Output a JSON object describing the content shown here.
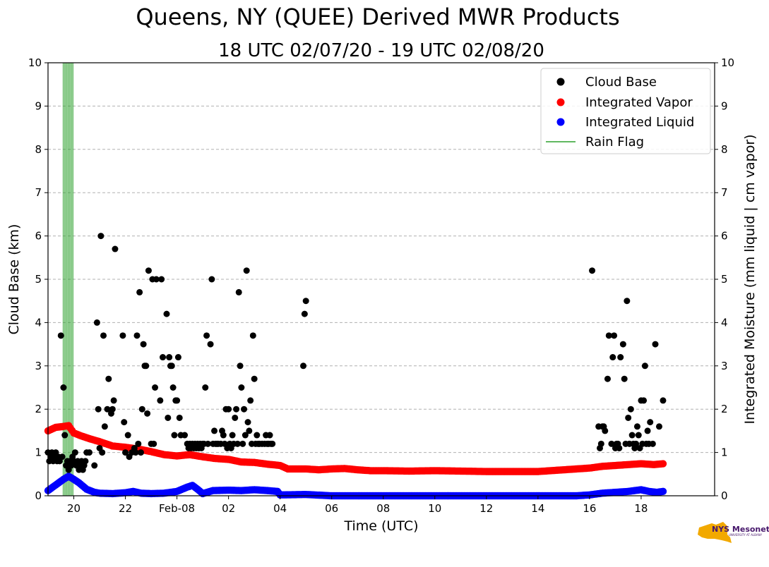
{
  "chart_data": {
    "type": "scatter",
    "title": "Queens, NY (QUEE) Derived MWR Products",
    "subtitle": "18 UTC 02/07/20 - 19 UTC 02/08/20",
    "xlabel": "Time (UTC)",
    "ylabel_left": "Cloud Base (km)",
    "ylabel_right": "Integrated Moisture (mm liquid | cm vapor)",
    "xlim_hours": [
      19.0,
      44.85
    ],
    "ylim": [
      0,
      10
    ],
    "y_ticks": [
      "0",
      "1",
      "2",
      "3",
      "4",
      "5",
      "6",
      "7",
      "8",
      "9",
      "10"
    ],
    "x_ticks": [
      {
        "hour": 20,
        "label": "20"
      },
      {
        "hour": 22,
        "label": "22"
      },
      {
        "hour": 24,
        "label": "Feb-08"
      },
      {
        "hour": 26,
        "label": "02"
      },
      {
        "hour": 28,
        "label": "04"
      },
      {
        "hour": 30,
        "label": "06"
      },
      {
        "hour": 32,
        "label": "08"
      },
      {
        "hour": 34,
        "label": "10"
      },
      {
        "hour": 36,
        "label": "12"
      },
      {
        "hour": 38,
        "label": "14"
      },
      {
        "hour": 40,
        "label": "16"
      },
      {
        "hour": 42,
        "label": "18"
      }
    ],
    "grid": "horizontal-dashed",
    "legend_position": "top-right",
    "series": [
      {
        "name": "Cloud Base",
        "color": "#000000",
        "points": [
          [
            19.0,
            1.0
          ],
          [
            19.05,
            0.8
          ],
          [
            19.1,
            0.9
          ],
          [
            19.15,
            1.0
          ],
          [
            19.2,
            0.8
          ],
          [
            19.25,
            0.9
          ],
          [
            19.3,
            1.0
          ],
          [
            19.35,
            0.8
          ],
          [
            19.4,
            0.9
          ],
          [
            19.45,
            0.8
          ],
          [
            19.5,
            3.7
          ],
          [
            19.55,
            0.9
          ],
          [
            19.6,
            2.5
          ],
          [
            19.65,
            1.4
          ],
          [
            19.7,
            0.7
          ],
          [
            19.75,
            0.8
          ],
          [
            19.8,
            0.6
          ],
          [
            19.85,
            0.8
          ],
          [
            19.9,
            0.7
          ],
          [
            19.95,
            0.9
          ],
          [
            20.0,
            0.8
          ],
          [
            20.05,
            1.0
          ],
          [
            20.1,
            0.7
          ],
          [
            20.15,
            0.8
          ],
          [
            20.2,
            0.6
          ],
          [
            20.25,
            0.7
          ],
          [
            20.3,
            0.8
          ],
          [
            20.35,
            0.6
          ],
          [
            20.4,
            0.7
          ],
          [
            20.45,
            0.8
          ],
          [
            20.5,
            1.0
          ],
          [
            20.6,
            1.0
          ],
          [
            20.8,
            0.7
          ],
          [
            20.9,
            4.0
          ],
          [
            20.95,
            2.0
          ],
          [
            21.0,
            1.1
          ],
          [
            21.05,
            6.0
          ],
          [
            21.1,
            1.0
          ],
          [
            21.15,
            3.7
          ],
          [
            21.2,
            1.6
          ],
          [
            21.3,
            2.0
          ],
          [
            21.35,
            2.7
          ],
          [
            21.45,
            1.9
          ],
          [
            21.5,
            2.0
          ],
          [
            21.55,
            2.2
          ],
          [
            21.6,
            5.7
          ],
          [
            21.9,
            3.7
          ],
          [
            21.95,
            1.7
          ],
          [
            22.0,
            1.0
          ],
          [
            22.1,
            1.4
          ],
          [
            22.15,
            0.9
          ],
          [
            22.25,
            1.0
          ],
          [
            22.35,
            1.1
          ],
          [
            22.4,
            1.0
          ],
          [
            22.45,
            3.7
          ],
          [
            22.5,
            1.2
          ],
          [
            22.55,
            4.7
          ],
          [
            22.6,
            1.0
          ],
          [
            22.65,
            2.0
          ],
          [
            22.7,
            3.5
          ],
          [
            22.75,
            3.0
          ],
          [
            22.8,
            3.0
          ],
          [
            22.85,
            1.9
          ],
          [
            22.9,
            5.2
          ],
          [
            23.0,
            1.2
          ],
          [
            23.05,
            5.0
          ],
          [
            23.1,
            1.2
          ],
          [
            23.15,
            2.5
          ],
          [
            23.2,
            5.0
          ],
          [
            23.35,
            2.2
          ],
          [
            23.4,
            5.0
          ],
          [
            23.45,
            3.2
          ],
          [
            23.6,
            4.2
          ],
          [
            23.65,
            1.8
          ],
          [
            23.7,
            3.2
          ],
          [
            23.75,
            3.0
          ],
          [
            23.8,
            3.0
          ],
          [
            23.85,
            2.5
          ],
          [
            23.9,
            1.4
          ],
          [
            23.95,
            2.2
          ],
          [
            24.0,
            2.2
          ],
          [
            24.05,
            3.2
          ],
          [
            24.1,
            1.8
          ],
          [
            24.15,
            1.4
          ],
          [
            24.3,
            1.4
          ],
          [
            24.4,
            1.2
          ],
          [
            24.45,
            1.1
          ],
          [
            24.5,
            1.2
          ],
          [
            24.55,
            1.1
          ],
          [
            24.6,
            1.2
          ],
          [
            24.65,
            1.1
          ],
          [
            24.7,
            1.2
          ],
          [
            24.75,
            1.1
          ],
          [
            24.8,
            1.2
          ],
          [
            24.85,
            1.1
          ],
          [
            24.9,
            1.2
          ],
          [
            24.95,
            1.1
          ],
          [
            25.0,
            1.2
          ],
          [
            25.05,
            1.2
          ],
          [
            25.1,
            2.5
          ],
          [
            25.15,
            3.7
          ],
          [
            25.2,
            1.2
          ],
          [
            25.3,
            3.5
          ],
          [
            25.35,
            5.0
          ],
          [
            25.4,
            1.2
          ],
          [
            25.45,
            1.5
          ],
          [
            25.5,
            1.2
          ],
          [
            25.55,
            1.2
          ],
          [
            25.6,
            1.2
          ],
          [
            25.7,
            1.2
          ],
          [
            25.75,
            1.5
          ],
          [
            25.8,
            1.4
          ],
          [
            25.85,
            1.2
          ],
          [
            25.9,
            2.0
          ],
          [
            25.95,
            1.1
          ],
          [
            26.0,
            2.0
          ],
          [
            26.05,
            1.2
          ],
          [
            26.1,
            1.1
          ],
          [
            26.15,
            1.4
          ],
          [
            26.2,
            1.2
          ],
          [
            26.25,
            1.8
          ],
          [
            26.3,
            2.0
          ],
          [
            26.35,
            1.2
          ],
          [
            26.4,
            4.7
          ],
          [
            26.45,
            3.0
          ],
          [
            26.5,
            2.5
          ],
          [
            26.55,
            1.2
          ],
          [
            26.6,
            2.0
          ],
          [
            26.65,
            1.4
          ],
          [
            26.7,
            5.2
          ],
          [
            26.75,
            1.7
          ],
          [
            26.8,
            1.5
          ],
          [
            26.85,
            2.2
          ],
          [
            26.9,
            1.2
          ],
          [
            26.95,
            3.7
          ],
          [
            27.0,
            2.7
          ],
          [
            27.05,
            1.2
          ],
          [
            27.1,
            1.4
          ],
          [
            27.15,
            1.2
          ],
          [
            27.2,
            1.2
          ],
          [
            27.3,
            1.2
          ],
          [
            27.4,
            1.2
          ],
          [
            27.45,
            1.4
          ],
          [
            27.5,
            1.2
          ],
          [
            27.55,
            1.2
          ],
          [
            27.6,
            1.4
          ],
          [
            27.65,
            1.2
          ],
          [
            27.7,
            1.2
          ],
          [
            28.9,
            3.0
          ],
          [
            28.95,
            4.2
          ],
          [
            29.0,
            4.5
          ],
          [
            40.1,
            5.2
          ],
          [
            40.35,
            1.6
          ],
          [
            40.4,
            1.1
          ],
          [
            40.45,
            1.2
          ],
          [
            40.5,
            1.6
          ],
          [
            40.55,
            1.6
          ],
          [
            40.6,
            1.5
          ],
          [
            40.7,
            2.7
          ],
          [
            40.75,
            3.7
          ],
          [
            40.85,
            1.2
          ],
          [
            40.9,
            3.2
          ],
          [
            40.95,
            3.7
          ],
          [
            41.0,
            1.1
          ],
          [
            41.05,
            1.2
          ],
          [
            41.1,
            1.2
          ],
          [
            41.15,
            1.1
          ],
          [
            41.2,
            3.2
          ],
          [
            41.3,
            3.5
          ],
          [
            41.35,
            2.7
          ],
          [
            41.4,
            1.2
          ],
          [
            41.45,
            4.5
          ],
          [
            41.5,
            1.8
          ],
          [
            41.55,
            1.2
          ],
          [
            41.6,
            2.0
          ],
          [
            41.65,
            1.4
          ],
          [
            41.7,
            1.2
          ],
          [
            41.75,
            1.1
          ],
          [
            41.8,
            1.2
          ],
          [
            41.85,
            1.6
          ],
          [
            41.9,
            1.4
          ],
          [
            41.95,
            1.1
          ],
          [
            42.0,
            2.2
          ],
          [
            42.05,
            1.2
          ],
          [
            42.1,
            2.2
          ],
          [
            42.15,
            3.0
          ],
          [
            42.2,
            1.2
          ],
          [
            42.25,
            1.5
          ],
          [
            42.3,
            1.2
          ],
          [
            42.35,
            1.7
          ],
          [
            42.45,
            1.2
          ],
          [
            42.55,
            3.5
          ],
          [
            42.7,
            1.6
          ],
          [
            42.85,
            2.2
          ]
        ]
      },
      {
        "name": "Integrated Vapor",
        "color": "#ff0000",
        "points": [
          [
            19.0,
            1.5
          ],
          [
            19.3,
            1.58
          ],
          [
            19.6,
            1.6
          ],
          [
            19.8,
            1.62
          ],
          [
            20.0,
            1.45
          ],
          [
            20.3,
            1.38
          ],
          [
            20.6,
            1.32
          ],
          [
            21.0,
            1.25
          ],
          [
            21.5,
            1.15
          ],
          [
            22.0,
            1.12
          ],
          [
            22.5,
            1.08
          ],
          [
            23.0,
            1.02
          ],
          [
            23.5,
            0.95
          ],
          [
            24.0,
            0.92
          ],
          [
            24.5,
            0.95
          ],
          [
            25.0,
            0.9
          ],
          [
            25.5,
            0.86
          ],
          [
            26.0,
            0.84
          ],
          [
            26.5,
            0.78
          ],
          [
            27.0,
            0.77
          ],
          [
            27.5,
            0.73
          ],
          [
            28.0,
            0.7
          ],
          [
            28.3,
            0.62
          ],
          [
            29.0,
            0.62
          ],
          [
            29.5,
            0.6
          ],
          [
            30.0,
            0.62
          ],
          [
            30.5,
            0.63
          ],
          [
            31.0,
            0.6
          ],
          [
            31.5,
            0.58
          ],
          [
            32.0,
            0.58
          ],
          [
            33.0,
            0.57
          ],
          [
            34.0,
            0.58
          ],
          [
            35.0,
            0.57
          ],
          [
            36.0,
            0.56
          ],
          [
            37.0,
            0.56
          ],
          [
            38.0,
            0.56
          ],
          [
            39.0,
            0.6
          ],
          [
            40.0,
            0.64
          ],
          [
            40.5,
            0.68
          ],
          [
            41.0,
            0.7
          ],
          [
            41.5,
            0.72
          ],
          [
            42.0,
            0.74
          ],
          [
            42.5,
            0.72
          ],
          [
            42.85,
            0.74
          ]
        ]
      },
      {
        "name": "Integrated Liquid",
        "color": "#0000ff",
        "points": [
          [
            19.0,
            0.12
          ],
          [
            19.3,
            0.25
          ],
          [
            19.6,
            0.38
          ],
          [
            19.8,
            0.45
          ],
          [
            20.0,
            0.38
          ],
          [
            20.2,
            0.3
          ],
          [
            20.5,
            0.15
          ],
          [
            20.8,
            0.08
          ],
          [
            21.0,
            0.06
          ],
          [
            21.5,
            0.05
          ],
          [
            22.0,
            0.07
          ],
          [
            22.3,
            0.1
          ],
          [
            22.6,
            0.06
          ],
          [
            23.0,
            0.05
          ],
          [
            23.5,
            0.06
          ],
          [
            24.0,
            0.1
          ],
          [
            24.4,
            0.2
          ],
          [
            24.6,
            0.24
          ],
          [
            24.8,
            0.15
          ],
          [
            25.0,
            0.05
          ],
          [
            25.4,
            0.12
          ],
          [
            26.0,
            0.13
          ],
          [
            26.5,
            0.12
          ],
          [
            27.0,
            0.14
          ],
          [
            27.5,
            0.12
          ],
          [
            27.9,
            0.1
          ],
          [
            28.0,
            0.02
          ],
          [
            29.0,
            0.03
          ],
          [
            30.0,
            0.0
          ],
          [
            32.0,
            0.0
          ],
          [
            34.0,
            0.0
          ],
          [
            36.0,
            0.0
          ],
          [
            38.0,
            0.0
          ],
          [
            39.5,
            0.0
          ],
          [
            40.0,
            0.02
          ],
          [
            40.5,
            0.06
          ],
          [
            41.0,
            0.08
          ],
          [
            41.5,
            0.1
          ],
          [
            42.0,
            0.14
          ],
          [
            42.3,
            0.1
          ],
          [
            42.6,
            0.08
          ],
          [
            42.85,
            0.1
          ]
        ]
      }
    ],
    "rain_flag": {
      "name": "Rain Flag",
      "color": "#2ca02c",
      "spans": [
        [
          19.58,
          19.98
        ]
      ]
    },
    "legend": [
      "Cloud Base",
      "Integrated Vapor",
      "Integrated Liquid",
      "Rain Flag"
    ]
  },
  "logo": {
    "text": "NYS Mesonet",
    "subtext": "UNIVERSITY AT ALBANY",
    "colors": {
      "state": "#f2a900",
      "text": "#46166b"
    }
  }
}
